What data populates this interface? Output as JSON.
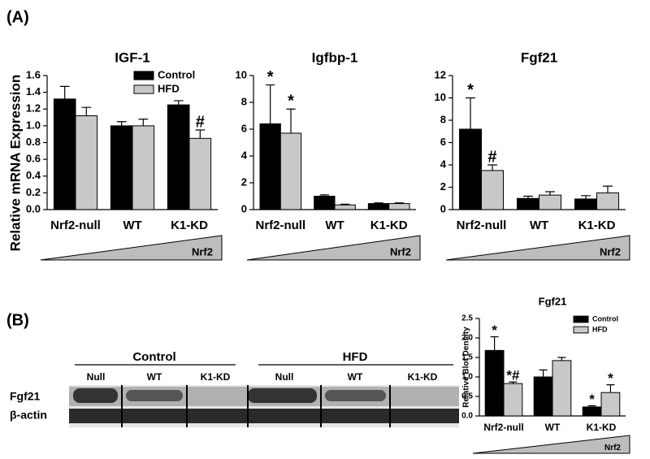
{
  "figure": {
    "panel_a": "(A)",
    "panel_b": "(B)",
    "blot": {
      "groups": [
        "Control",
        "HFD"
      ],
      "lanes": [
        "Null",
        "WT",
        "K1-KD",
        "Null",
        "WT",
        "K1-KD"
      ],
      "rows": [
        "Fgf21",
        "β-actin"
      ]
    }
  },
  "chart_data": [
    {
      "type": "bar",
      "title": "IGF-1",
      "ylabel": "Relative mRNA Expression",
      "categories": [
        "Nrf2-null",
        "WT",
        "K1-KD"
      ],
      "series": [
        {
          "name": "Control",
          "color": "#000000",
          "values": [
            1.32,
            1.0,
            1.25
          ],
          "errors": [
            0.15,
            0.05,
            0.05
          ],
          "annotations": [
            null,
            null,
            null
          ]
        },
        {
          "name": "HFD",
          "color": "#c8c8c8",
          "values": [
            1.12,
            1.0,
            0.85
          ],
          "errors": [
            0.1,
            0.08,
            0.1
          ],
          "annotations": [
            null,
            null,
            "#"
          ]
        }
      ],
      "ylim": [
        0,
        1.6
      ],
      "yticks": [
        {
          "value": 0,
          "label": "0.0"
        },
        0.2,
        0.4,
        0.6,
        0.8,
        {
          "value": 1,
          "label": "1.0"
        },
        1.2,
        1.4,
        1.6
      ],
      "legend": true,
      "wedge_label": "Nrf2"
    },
    {
      "type": "bar",
      "title": "Igfbp-1",
      "categories": [
        "Nrf2-null",
        "WT",
        "K1-KD"
      ],
      "series": [
        {
          "name": "Control",
          "color": "#000000",
          "values": [
            6.4,
            1.0,
            0.45
          ],
          "errors": [
            2.9,
            0.1,
            0.05
          ],
          "annotations": [
            "*",
            null,
            null
          ]
        },
        {
          "name": "HFD",
          "color": "#c8c8c8",
          "values": [
            5.7,
            0.35,
            0.45
          ],
          "errors": [
            1.8,
            0.05,
            0.05
          ],
          "annotations": [
            "*",
            null,
            null
          ]
        }
      ],
      "ylim": [
        0,
        10
      ],
      "yticks": [
        0,
        2,
        4,
        6,
        8,
        10
      ],
      "legend": false,
      "wedge_label": "Nrf2"
    },
    {
      "type": "bar",
      "title": "Fgf21",
      "categories": [
        "Nrf2-null",
        "WT",
        "K1-KD"
      ],
      "series": [
        {
          "name": "Control",
          "color": "#000000",
          "values": [
            7.2,
            1.0,
            0.95
          ],
          "errors": [
            2.8,
            0.2,
            0.3
          ],
          "annotations": [
            "*",
            null,
            null
          ]
        },
        {
          "name": "HFD",
          "color": "#c8c8c8",
          "values": [
            3.5,
            1.3,
            1.5
          ],
          "errors": [
            0.5,
            0.3,
            0.6
          ],
          "annotations": [
            "#",
            null,
            null
          ]
        }
      ],
      "ylim": [
        0,
        12
      ],
      "yticks": [
        0,
        2,
        4,
        6,
        8,
        10,
        12
      ],
      "legend": false,
      "wedge_label": "Nrf2"
    },
    {
      "type": "bar",
      "title": "Fgf21",
      "ylabel": "Relative Blot Density",
      "categories": [
        "Nrf2-null",
        "WT",
        "K1-KD"
      ],
      "series": [
        {
          "name": "Control",
          "color": "#000000",
          "values": [
            1.68,
            1.0,
            0.23
          ],
          "errors": [
            0.35,
            0.18,
            0.03
          ],
          "annotations": [
            "*",
            null,
            "*"
          ]
        },
        {
          "name": "HFD",
          "color": "#c8c8c8",
          "values": [
            0.83,
            1.42,
            0.6
          ],
          "errors": [
            0.04,
            0.08,
            0.2
          ],
          "annotations": [
            "*#",
            null,
            "*"
          ]
        }
      ],
      "ylim": [
        0,
        2.5
      ],
      "yticks": [
        {
          "value": 0,
          "label": "0.0"
        },
        0.5,
        {
          "value": 1,
          "label": "1.0"
        },
        1.5,
        {
          "value": 2,
          "label": "2.0"
        },
        2.5
      ],
      "legend": true,
      "wedge_label": "Nrf2"
    }
  ]
}
